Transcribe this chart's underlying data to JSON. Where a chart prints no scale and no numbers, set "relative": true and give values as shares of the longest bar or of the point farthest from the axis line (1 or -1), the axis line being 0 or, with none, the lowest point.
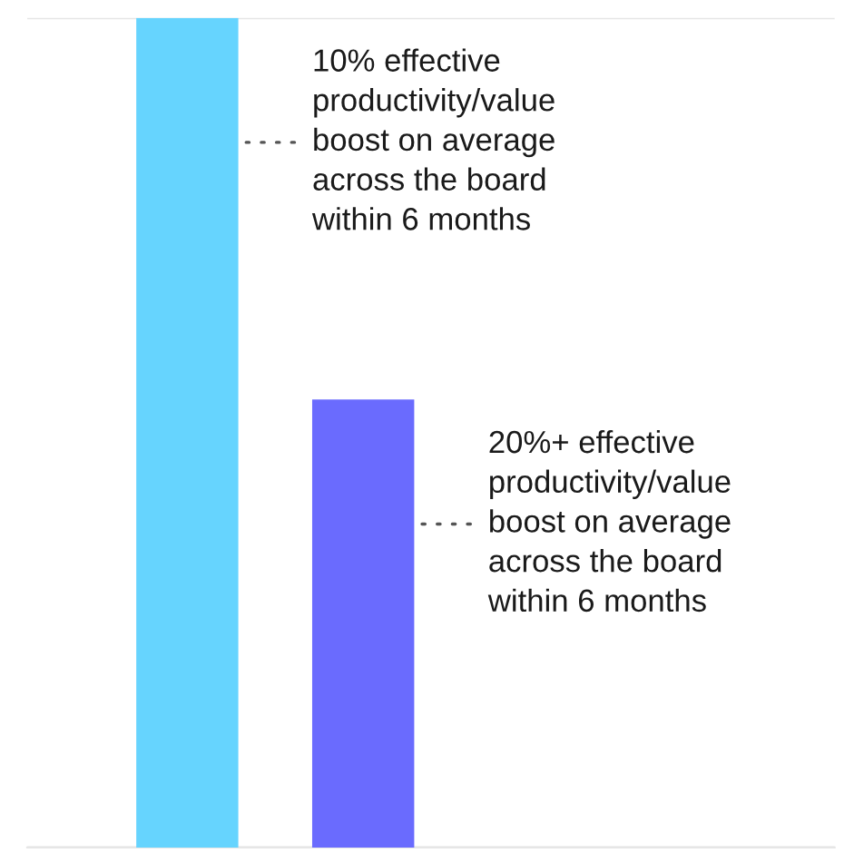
{
  "chart_data": {
    "type": "bar",
    "relative": true,
    "categories": [
      null,
      null
    ],
    "values": [
      1,
      0.54
    ],
    "colors": [
      "#66d4fe",
      "#6a6bfe"
    ],
    "grid": "y",
    "annotations": [
      "10% effective\nproductivity/value\nboost on average\nacross the board\nwithin 6 months",
      "20%+ effective\nproductivity/value\nboost on average\nacross the board\nwithin 6 months"
    ]
  }
}
